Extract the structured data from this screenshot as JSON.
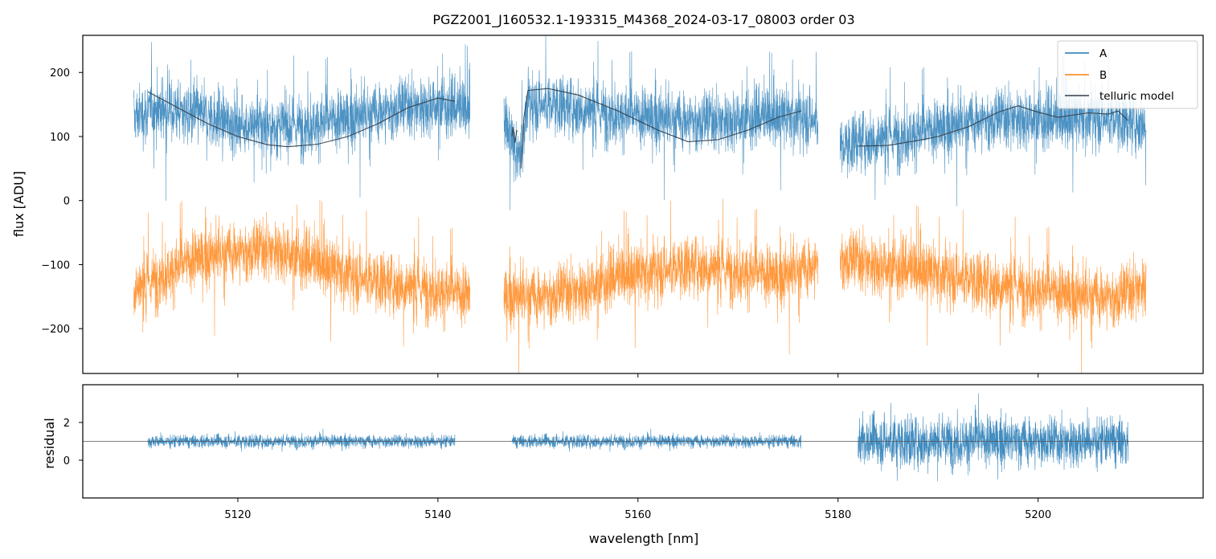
{
  "chart_data": [
    {
      "type": "line",
      "title": "PGZ2001_J160532.1-193315_M4368_2024-03-17_08003  order 03",
      "xlabel": "",
      "ylabel": "flux [ADU]",
      "xlim": [
        5104.5,
        5216.5
      ],
      "ylim": [
        -270,
        258
      ],
      "x_ticks": [
        5120,
        5140,
        5160,
        5180,
        5200
      ],
      "y_ticks": [
        {
          "value": 200,
          "label": "200"
        },
        {
          "value": 100,
          "label": "100"
        },
        {
          "value": 0,
          "label": "0"
        },
        {
          "value": -100,
          "label": "−100"
        },
        {
          "value": -200,
          "label": "−200"
        }
      ],
      "legend_position": "top-right",
      "segments_x": [
        [
          5109.6,
          5143.2
        ],
        [
          5146.6,
          5178.0
        ],
        [
          5180.2,
          5210.8
        ]
      ],
      "series": [
        {
          "name": "A",
          "color": "#1f77b4",
          "style": "noisy",
          "envelope_center": [
            [
              5109.6,
              130
            ],
            [
              5112,
              145
            ],
            [
              5116,
              135
            ],
            [
              5120,
              120
            ],
            [
              5124,
              115
            ],
            [
              5128,
              120
            ],
            [
              5132,
              130
            ],
            [
              5136,
              145
            ],
            [
              5140,
              150
            ],
            [
              5143.2,
              140
            ],
            [
              5146.6,
              130
            ],
            [
              5148,
              60
            ],
            [
              5149,
              150
            ],
            [
              5152,
              150
            ],
            [
              5156,
              140
            ],
            [
              5160,
              130
            ],
            [
              5164,
              125
            ],
            [
              5168,
              125
            ],
            [
              5172,
              130
            ],
            [
              5176,
              130
            ],
            [
              5178.0,
              125
            ],
            [
              5180.2,
              80
            ],
            [
              5182,
              95
            ],
            [
              5186,
              100
            ],
            [
              5190,
              110
            ],
            [
              5194,
              125
            ],
            [
              5198,
              130
            ],
            [
              5202,
              125
            ],
            [
              5206,
              130
            ],
            [
              5210.8,
              120
            ]
          ],
          "noise_amplitude": 55
        },
        {
          "name": "B",
          "color": "#ff7f0e",
          "style": "noisy",
          "envelope_center": [
            [
              5109.6,
              -140
            ],
            [
              5112,
              -120
            ],
            [
              5116,
              -90
            ],
            [
              5120,
              -80
            ],
            [
              5124,
              -75
            ],
            [
              5128,
              -100
            ],
            [
              5132,
              -120
            ],
            [
              5136,
              -130
            ],
            [
              5140,
              -140
            ],
            [
              5143.2,
              -150
            ],
            [
              5146.6,
              -150
            ],
            [
              5150,
              -150
            ],
            [
              5154,
              -140
            ],
            [
              5158,
              -120
            ],
            [
              5162,
              -110
            ],
            [
              5166,
              -100
            ],
            [
              5170,
              -110
            ],
            [
              5174,
              -120
            ],
            [
              5178.0,
              -100
            ],
            [
              5180.2,
              -90
            ],
            [
              5184,
              -100
            ],
            [
              5188,
              -110
            ],
            [
              5192,
              -120
            ],
            [
              5196,
              -130
            ],
            [
              5200,
              -140
            ],
            [
              5204,
              -150
            ],
            [
              5208,
              -150
            ],
            [
              5210.8,
              -130
            ]
          ],
          "noise_amplitude": 55
        },
        {
          "name": "telluric model",
          "color": "#333f4b",
          "style": "smooth",
          "segments": [
            [
              [
                5111,
                170
              ],
              [
                5114,
                145
              ],
              [
                5117,
                120
              ],
              [
                5120,
                100
              ],
              [
                5123,
                87
              ],
              [
                5125,
                84
              ],
              [
                5128,
                88
              ],
              [
                5131,
                100
              ],
              [
                5134,
                120
              ],
              [
                5137,
                145
              ],
              [
                5140,
                160
              ],
              [
                5141.7,
                155
              ]
            ],
            [
              [
                5147.4,
                100
              ],
              [
                5147.5,
                115
              ],
              [
                5147.7,
                90
              ],
              [
                5147.9,
                110
              ]
            ],
            [
              [
                5148.3,
                50
              ],
              [
                5148.6,
                130
              ],
              [
                5149,
                172
              ],
              [
                5151,
                175
              ],
              [
                5154,
                165
              ],
              [
                5158,
                140
              ],
              [
                5162,
                110
              ],
              [
                5165,
                92
              ],
              [
                5168,
                95
              ],
              [
                5171,
                110
              ],
              [
                5174,
                130
              ],
              [
                5176.3,
                140
              ]
            ],
            [
              [
                5182,
                85
              ],
              [
                5185,
                86
              ],
              [
                5188,
                94
              ],
              [
                5190,
                100
              ],
              [
                5193,
                115
              ],
              [
                5196,
                138
              ],
              [
                5198,
                148
              ],
              [
                5200,
                138
              ],
              [
                5202,
                130
              ],
              [
                5205,
                137
              ],
              [
                5207,
                135
              ],
              [
                5208,
                140
              ],
              [
                5209,
                125
              ]
            ]
          ]
        }
      ]
    },
    {
      "type": "line",
      "title": "",
      "xlabel": "wavelength [nm]",
      "ylabel": "residual",
      "xlim": [
        5104.5,
        5216.5
      ],
      "ylim": [
        -2.0,
        4.0
      ],
      "x_ticks": [
        {
          "value": 5120,
          "label": "5120"
        },
        {
          "value": 5140,
          "label": "5140"
        },
        {
          "value": 5160,
          "label": "5160"
        },
        {
          "value": 5180,
          "label": "5180"
        },
        {
          "value": 5200,
          "label": "5200"
        }
      ],
      "y_ticks": [
        {
          "value": 2,
          "label": "2"
        },
        {
          "value": 0,
          "label": "0"
        }
      ],
      "reference_line": 1.0,
      "series": [
        {
          "name": "",
          "color": "#1f77b4",
          "style": "noisy",
          "segments": [
            {
              "x": [
                5111.0,
                5141.7
              ],
              "center": 1.0,
              "amplitude": 0.55
            },
            {
              "x": [
                5147.4,
                5176.3
              ],
              "center": 1.0,
              "amplitude": 0.55
            },
            {
              "x": [
                5182.0,
                5209.0
              ],
              "center": 1.0,
              "amplitude": 2.1
            }
          ]
        }
      ]
    }
  ]
}
